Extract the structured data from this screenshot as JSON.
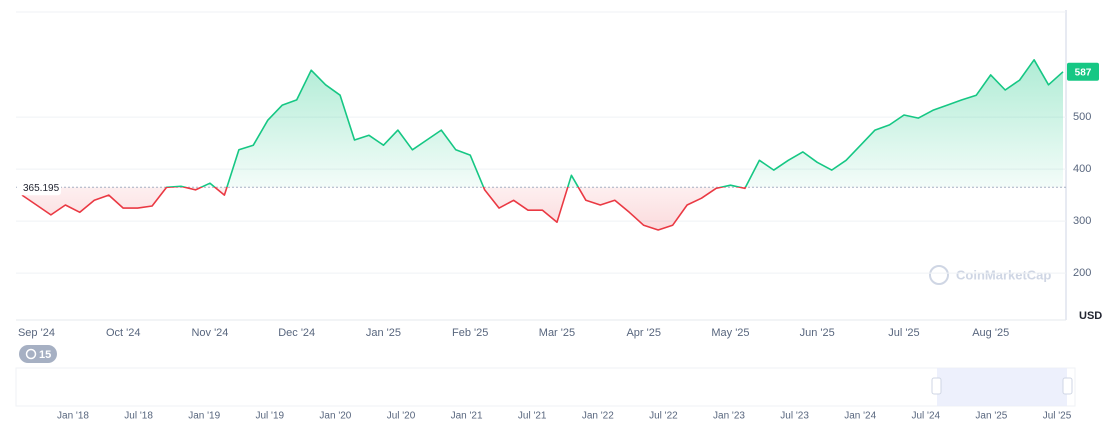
{
  "chart_data": {
    "type": "line",
    "categories": [
      null,
      "Sep '24",
      null,
      null,
      null,
      null,
      null,
      "Oct '24",
      null,
      null,
      null,
      null,
      null,
      "Nov '24",
      null,
      null,
      null,
      null,
      null,
      "Dec '24",
      null,
      null,
      null,
      null,
      null,
      "Jan '25",
      null,
      null,
      null,
      null,
      null,
      "Feb '25",
      null,
      null,
      null,
      null,
      null,
      "Mar '25",
      null,
      null,
      null,
      null,
      null,
      "Apr '25",
      null,
      null,
      null,
      null,
      null,
      "May '25",
      null,
      null,
      null,
      null,
      null,
      "Jun '25",
      null,
      null,
      null,
      null,
      null,
      "Jul '25",
      null,
      null,
      null,
      null,
      null,
      "Aug '25",
      null,
      null,
      null,
      null,
      null
    ],
    "values": [
      350,
      331,
      312,
      331,
      317,
      340,
      350,
      325,
      325,
      329,
      365,
      367,
      360,
      373,
      350,
      437,
      446,
      494,
      523,
      533,
      590,
      562,
      542,
      456,
      465,
      446,
      475,
      437,
      456,
      475,
      437,
      427,
      360,
      325,
      340,
      321,
      321,
      298,
      388,
      340,
      331,
      340,
      317,
      292,
      283,
      292,
      331,
      344,
      363,
      369,
      363,
      417,
      398,
      417,
      433,
      413,
      398,
      417,
      446,
      475,
      485,
      504,
      498,
      513,
      523,
      533,
      542,
      581,
      552,
      571,
      610,
      562,
      587
    ],
    "baseline": 365.195,
    "up_color": "#16c784",
    "down_color": "#ea3943",
    "ylim": [
      110,
      700
    ],
    "yticks": [
      200,
      300,
      400,
      500
    ],
    "y_label": "USD",
    "grid": true,
    "watermark": "CoinMarketCap",
    "badge": 15,
    "navigator": {
      "labels": [
        "Jan '18",
        "Jul '18",
        "Jan '19",
        "Jul '19",
        "Jan '20",
        "Jul '20",
        "Jan '21",
        "Jul '21",
        "Jan '22",
        "Jul '22",
        "Jan '23",
        "Jul '23",
        "Jan '24",
        "Jul '24",
        "Jan '25",
        "Jul '25"
      ]
    }
  }
}
